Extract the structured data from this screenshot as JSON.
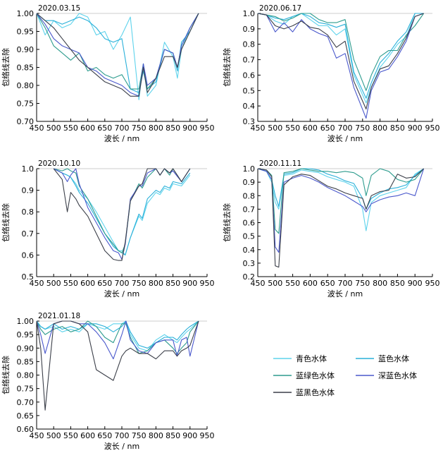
{
  "chart_data": [
    {
      "type": "line",
      "title": "2020.03.15",
      "xlabel": "波长 / nm",
      "ylabel": "包络线去除",
      "xlim": [
        450,
        950
      ],
      "ylim": [
        0.7,
        1.0
      ],
      "xticks": [
        450,
        500,
        550,
        600,
        650,
        700,
        750,
        800,
        850,
        900,
        950
      ],
      "yticks": [
        0.7,
        0.75,
        0.8,
        0.85,
        0.9,
        0.95,
        1.0
      ],
      "x": [
        450,
        475,
        500,
        525,
        550,
        575,
        600,
        625,
        650,
        675,
        700,
        725,
        750,
        763,
        775,
        800,
        825,
        850,
        863,
        875,
        900,
        925
      ],
      "series": [
        {
          "name": "青色水体",
          "values": [
            1.0,
            0.94,
            0.98,
            0.96,
            0.97,
            1.0,
            0.99,
            0.94,
            0.95,
            0.9,
            0.94,
            0.99,
            0.76,
            0.86,
            0.77,
            0.8,
            0.92,
            0.88,
            0.82,
            0.9,
            0.96,
            1.0
          ]
        },
        {
          "name": "蓝色水体",
          "values": [
            1.0,
            0.98,
            0.98,
            0.97,
            0.98,
            0.99,
            0.98,
            0.96,
            0.93,
            0.92,
            0.93,
            0.79,
            0.78,
            0.84,
            0.79,
            0.81,
            0.9,
            0.89,
            0.84,
            0.92,
            0.95,
            1.0
          ]
        },
        {
          "name": "蓝绿色水体",
          "values": [
            1.0,
            0.96,
            0.91,
            0.89,
            0.87,
            0.89,
            0.84,
            0.85,
            0.83,
            0.82,
            0.83,
            0.79,
            0.79,
            0.86,
            0.79,
            0.82,
            0.9,
            0.89,
            0.85,
            0.91,
            0.96,
            1.0
          ]
        },
        {
          "name": "深蓝色水体",
          "values": [
            1.0,
            0.97,
            0.93,
            0.91,
            0.9,
            0.89,
            0.85,
            0.84,
            0.82,
            0.81,
            0.8,
            0.78,
            0.77,
            0.86,
            0.8,
            0.82,
            0.9,
            0.89,
            0.85,
            0.91,
            0.96,
            1.0
          ]
        },
        {
          "name": "蓝黑色水体",
          "values": [
            1.0,
            0.98,
            0.96,
            0.93,
            0.9,
            0.87,
            0.85,
            0.83,
            0.81,
            0.8,
            0.79,
            0.77,
            0.77,
            0.85,
            0.78,
            0.82,
            0.88,
            0.88,
            0.85,
            0.9,
            0.95,
            1.0
          ]
        }
      ]
    },
    {
      "type": "line",
      "title": "2020.06.17",
      "xlabel": "波长 / nm",
      "ylabel": "包络线去除",
      "xlim": [
        450,
        950
      ],
      "ylim": [
        0.3,
        1.0
      ],
      "xticks": [
        450,
        500,
        550,
        600,
        650,
        700,
        750,
        800,
        850,
        900,
        950
      ],
      "yticks": [
        0.3,
        0.4,
        0.5,
        0.6,
        0.7,
        0.8,
        0.9,
        1.0
      ],
      "x": [
        450,
        475,
        500,
        525,
        550,
        575,
        600,
        625,
        650,
        675,
        700,
        725,
        760,
        775,
        800,
        825,
        850,
        875,
        900,
        925
      ],
      "series": [
        {
          "name": "青色水体",
          "values": [
            1.0,
            0.99,
            0.95,
            0.93,
            0.98,
            1.0,
            0.96,
            0.92,
            0.92,
            0.86,
            0.9,
            0.6,
            0.42,
            0.52,
            0.65,
            0.72,
            0.8,
            0.85,
            1.0,
            1.0
          ]
        },
        {
          "name": "蓝色水体",
          "values": [
            1.0,
            0.99,
            0.97,
            0.96,
            0.98,
            1.0,
            0.98,
            0.94,
            0.93,
            0.91,
            0.93,
            0.62,
            0.45,
            0.55,
            0.68,
            0.74,
            0.82,
            0.88,
            1.0,
            1.0
          ]
        },
        {
          "name": "蓝绿色水体",
          "values": [
            1.0,
            0.99,
            0.98,
            0.95,
            0.97,
            1.0,
            1.0,
            0.96,
            0.94,
            0.94,
            0.96,
            0.7,
            0.5,
            0.6,
            0.72,
            0.76,
            0.76,
            0.86,
            0.92,
            1.0
          ]
        },
        {
          "name": "深蓝色水体",
          "values": [
            1.0,
            0.99,
            0.88,
            0.94,
            0.88,
            0.96,
            0.9,
            0.87,
            0.85,
            0.71,
            0.74,
            0.52,
            0.32,
            0.5,
            0.62,
            0.64,
            0.72,
            0.82,
            0.98,
            1.0
          ]
        },
        {
          "name": "蓝黑色水体",
          "values": [
            1.0,
            0.99,
            0.92,
            0.9,
            0.92,
            0.95,
            0.91,
            0.9,
            0.86,
            0.78,
            0.82,
            0.56,
            0.38,
            0.52,
            0.64,
            0.66,
            0.74,
            0.84,
            0.98,
            1.0
          ]
        }
      ]
    },
    {
      "type": "line",
      "title": "2020.10.10",
      "xlabel": "波长 / nm",
      "ylabel": "包络线去除",
      "xlim": [
        450,
        950
      ],
      "ylim": [
        0.5,
        1.0
      ],
      "xticks": [
        450,
        500,
        550,
        600,
        650,
        700,
        750,
        800,
        850,
        900,
        950
      ],
      "yticks": [
        0.5,
        0.6,
        0.7,
        0.8,
        0.9,
        1.0
      ],
      "x": [
        500,
        525,
        540,
        550,
        565,
        575,
        600,
        625,
        650,
        675,
        690,
        700,
        710,
        725,
        750,
        760,
        775,
        800,
        812,
        825,
        840,
        850,
        875,
        900
      ],
      "series": [
        {
          "name": "青色水体",
          "values": [
            1.0,
            0.98,
            0.97,
            0.96,
            0.93,
            0.9,
            0.86,
            0.8,
            0.73,
            0.66,
            0.62,
            0.62,
            0.6,
            0.68,
            0.78,
            0.76,
            0.84,
            0.89,
            0.88,
            0.91,
            0.9,
            0.93,
            0.92,
            0.97
          ]
        },
        {
          "name": "蓝色水体",
          "values": [
            1.0,
            0.98,
            0.97,
            0.96,
            0.92,
            0.89,
            0.84,
            0.77,
            0.7,
            0.64,
            0.62,
            0.61,
            0.6,
            0.68,
            0.79,
            0.77,
            0.86,
            0.9,
            0.89,
            0.92,
            0.91,
            0.94,
            0.93,
            0.98
          ]
        },
        {
          "name": "蓝绿色水体",
          "values": [
            1.0,
            0.99,
            1.0,
            0.99,
            0.98,
            0.92,
            0.86,
            0.78,
            0.7,
            0.65,
            0.62,
            0.61,
            0.65,
            0.85,
            0.93,
            0.91,
            0.96,
            1.0,
            0.97,
            1.0,
            0.97,
            1.0,
            0.94,
            1.0
          ]
        },
        {
          "name": "深蓝色水体",
          "values": [
            1.0,
            0.98,
            0.94,
            0.97,
            1.0,
            0.93,
            0.82,
            0.75,
            0.68,
            0.62,
            0.61,
            0.58,
            0.65,
            0.86,
            0.92,
            0.92,
            0.98,
            1.0,
            0.97,
            1.0,
            0.98,
            0.99,
            0.94,
            1.0
          ]
        },
        {
          "name": "蓝黑色水体",
          "values": [
            1.0,
            0.95,
            0.8,
            0.89,
            0.86,
            0.83,
            0.78,
            0.7,
            0.62,
            0.58,
            0.575,
            0.575,
            0.66,
            0.85,
            0.92,
            0.93,
            1.0,
            1.0,
            0.97,
            1.0,
            0.98,
            1.0,
            0.94,
            1.0
          ]
        }
      ]
    },
    {
      "type": "line",
      "title": "2020.11.11",
      "xlabel": "波长 / nm",
      "ylabel": "包络线去除",
      "xlim": [
        450,
        950
      ],
      "ylim": [
        0.2,
        1.0
      ],
      "xticks": [
        450,
        500,
        550,
        600,
        650,
        700,
        750,
        800,
        850,
        900,
        950
      ],
      "yticks": [
        0.2,
        0.3,
        0.4,
        0.5,
        0.6,
        0.7,
        0.8,
        0.9,
        1.0
      ],
      "x": [
        450,
        475,
        490,
        500,
        510,
        525,
        550,
        575,
        600,
        625,
        650,
        675,
        700,
        725,
        750,
        760,
        775,
        800,
        825,
        850,
        875,
        900,
        925
      ],
      "series": [
        {
          "name": "青色水体",
          "values": [
            1.0,
            0.98,
            0.9,
            0.75,
            0.7,
            0.95,
            0.96,
            0.99,
            0.98,
            0.97,
            0.94,
            0.92,
            0.9,
            0.87,
            0.7,
            0.54,
            0.75,
            0.8,
            0.82,
            0.84,
            0.86,
            0.96,
            1.0
          ]
        },
        {
          "name": "蓝色水体",
          "values": [
            1.0,
            0.98,
            0.92,
            0.8,
            0.72,
            0.96,
            0.97,
            1.0,
            1.0,
            0.99,
            0.96,
            0.94,
            0.91,
            0.89,
            0.78,
            0.7,
            0.78,
            0.82,
            0.85,
            0.86,
            0.88,
            0.95,
            1.0
          ]
        },
        {
          "name": "蓝绿色水体",
          "values": [
            1.0,
            0.99,
            0.95,
            0.55,
            0.52,
            0.97,
            0.98,
            1.0,
            0.99,
            0.98,
            0.98,
            0.97,
            0.98,
            0.97,
            0.93,
            0.8,
            0.95,
            1.0,
            0.98,
            0.92,
            0.9,
            0.92,
            1.0
          ]
        },
        {
          "name": "深蓝色水体",
          "values": [
            1.0,
            0.98,
            0.92,
            0.42,
            0.38,
            0.9,
            0.93,
            0.95,
            0.93,
            0.9,
            0.86,
            0.83,
            0.8,
            0.76,
            0.72,
            0.68,
            0.74,
            0.77,
            0.79,
            0.8,
            0.82,
            0.8,
            1.0
          ]
        },
        {
          "name": "蓝黑色水体",
          "values": [
            1.0,
            0.99,
            0.94,
            0.28,
            0.27,
            0.88,
            0.94,
            0.96,
            0.95,
            0.91,
            0.87,
            0.85,
            0.82,
            0.8,
            0.78,
            0.7,
            0.8,
            0.83,
            0.84,
            0.96,
            0.93,
            0.94,
            1.0
          ]
        }
      ]
    },
    {
      "type": "line",
      "title": "2021.01.18",
      "xlabel": "波长 / nm",
      "ylabel": "包络线去除",
      "xlim": [
        450,
        950
      ],
      "ylim": [
        0.6,
        1.0
      ],
      "xticks": [
        450,
        500,
        550,
        600,
        650,
        700,
        750,
        800,
        850,
        900,
        950
      ],
      "yticks": [
        0.6,
        0.65,
        0.7,
        0.75,
        0.8,
        0.85,
        0.9,
        0.95,
        1.0
      ],
      "x": [
        450,
        462,
        475,
        500,
        525,
        550,
        575,
        600,
        625,
        650,
        675,
        700,
        712,
        725,
        750,
        775,
        800,
        825,
        850,
        862,
        875,
        890,
        900,
        925
      ],
      "series": [
        {
          "name": "青色水体",
          "values": [
            1.0,
            0.98,
            0.97,
            0.98,
            0.96,
            0.97,
            0.96,
            0.99,
            0.98,
            0.97,
            0.99,
            0.99,
            1.0,
            0.95,
            0.9,
            0.89,
            0.93,
            0.95,
            0.93,
            0.92,
            0.94,
            0.96,
            0.97,
            1.0
          ]
        },
        {
          "name": "蓝色水体",
          "values": [
            1.0,
            0.98,
            0.97,
            0.99,
            0.97,
            0.98,
            0.97,
            0.99,
            0.99,
            0.98,
            0.96,
            0.98,
            1.0,
            0.96,
            0.91,
            0.9,
            0.92,
            0.94,
            0.94,
            0.93,
            0.95,
            0.97,
            0.98,
            1.0
          ]
        },
        {
          "name": "蓝绿色水体",
          "values": [
            1.0,
            0.97,
            0.95,
            0.97,
            0.98,
            0.96,
            0.97,
            1.0,
            0.98,
            0.94,
            0.92,
            0.99,
            0.99,
            0.94,
            0.88,
            0.89,
            0.92,
            0.93,
            0.9,
            0.88,
            0.9,
            0.92,
            0.96,
            1.0
          ]
        },
        {
          "name": "深蓝色水体",
          "values": [
            1.0,
            0.95,
            0.88,
            0.99,
            1.0,
            1.0,
            0.99,
            0.99,
            0.96,
            0.92,
            0.86,
            0.95,
            1.0,
            0.93,
            0.89,
            0.88,
            0.92,
            0.93,
            0.93,
            0.87,
            0.93,
            0.94,
            0.87,
            1.0
          ]
        },
        {
          "name": "蓝黑色水体",
          "values": [
            1.0,
            0.9,
            0.67,
            0.99,
            1.0,
            1.0,
            0.99,
            0.96,
            0.82,
            0.8,
            0.78,
            0.87,
            0.89,
            0.9,
            0.88,
            0.88,
            0.86,
            0.89,
            0.89,
            0.87,
            0.89,
            0.9,
            0.91,
            1.0
          ]
        }
      ]
    }
  ],
  "legend": {
    "entries": [
      {
        "name": "青色水体",
        "color": "#5ed3ec"
      },
      {
        "name": "蓝色水体",
        "color": "#2ab0d9"
      },
      {
        "name": "蓝绿色水体",
        "color": "#2e9c8e"
      },
      {
        "name": "深蓝色水体",
        "color": "#4a58cc"
      },
      {
        "name": "蓝黑色水体",
        "color": "#3b3f49"
      }
    ]
  },
  "colors": {
    "青色水体": "#5ed3ec",
    "蓝色水体": "#2ab0d9",
    "蓝绿色水体": "#2e9c8e",
    "深蓝色水体": "#4a58cc",
    "蓝黑色水体": "#3b3f49"
  }
}
